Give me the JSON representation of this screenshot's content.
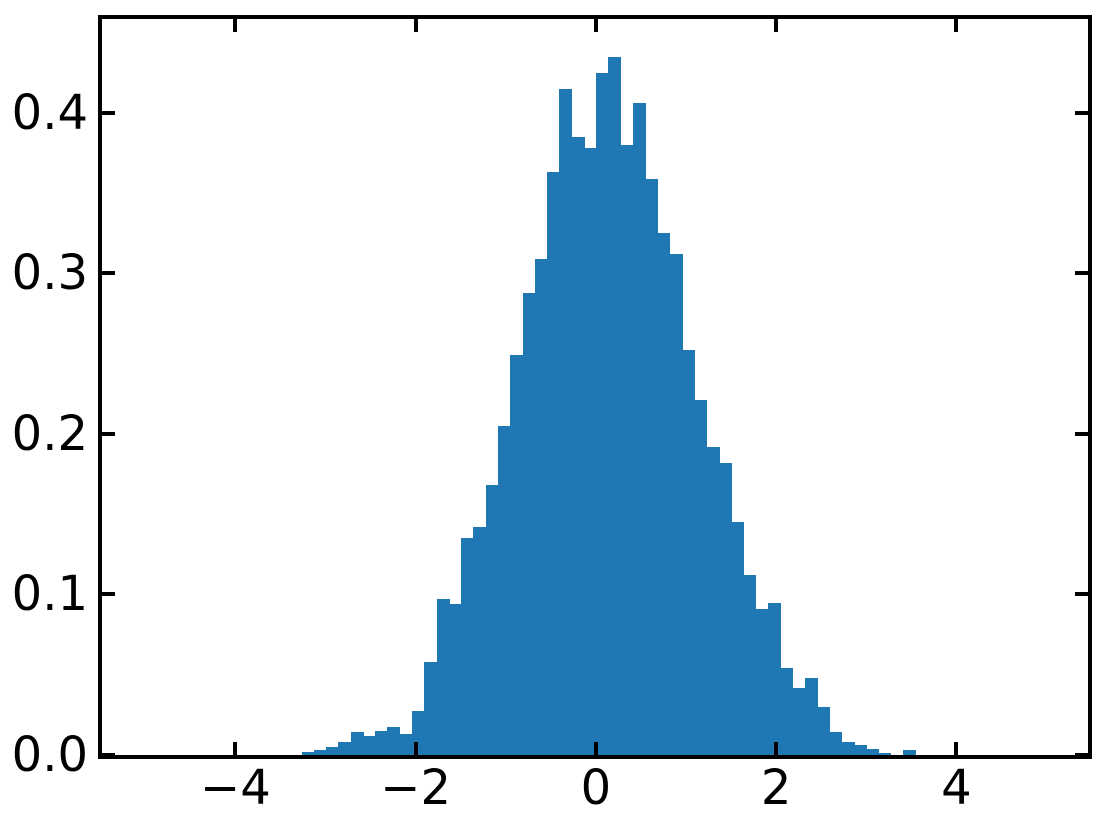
{
  "figure": {
    "background_color": "#ffffff",
    "text_color": "#000000",
    "spine_color": "#000000"
  },
  "chart_data": {
    "type": "histogram",
    "title": "",
    "xlabel": "",
    "ylabel": "",
    "legend": null,
    "grid": false,
    "bar_color": "#1f77b4",
    "xlim": [
      -5.48,
      5.46
    ],
    "ylim": [
      0,
      0.4585
    ],
    "tick_direction": "in",
    "ticks_on_all_sides": true,
    "xticks": [
      {
        "value": -4,
        "label": "−4"
      },
      {
        "value": -2,
        "label": "−2"
      },
      {
        "value": 0,
        "label": "0"
      },
      {
        "value": 2,
        "label": "2"
      },
      {
        "value": 4,
        "label": "4"
      }
    ],
    "yticks": [
      {
        "value": 0.0,
        "label": "0.0"
      },
      {
        "value": 0.1,
        "label": "0.1"
      },
      {
        "value": 0.2,
        "label": "0.2"
      },
      {
        "value": 0.3,
        "label": "0.3"
      },
      {
        "value": 0.4,
        "label": "0.4"
      }
    ],
    "bins": {
      "start": -3.266,
      "width": 0.1362,
      "count": 50
    },
    "density_values": [
      0.002,
      0.003,
      0.005,
      0.008,
      0.0145,
      0.012,
      0.015,
      0.0175,
      0.013,
      0.0275,
      0.058,
      0.097,
      0.094,
      0.135,
      0.142,
      0.168,
      0.205,
      0.249,
      0.288,
      0.309,
      0.363,
      0.415,
      0.385,
      0.378,
      0.425,
      0.435,
      0.38,
      0.406,
      0.359,
      0.325,
      0.312,
      0.252,
      0.221,
      0.192,
      0.182,
      0.145,
      0.112,
      0.091,
      0.095,
      0.054,
      0.042,
      0.048,
      0.03,
      0.0145,
      0.008,
      0.006,
      0.004,
      0.001,
      0.0,
      0.003
    ]
  }
}
